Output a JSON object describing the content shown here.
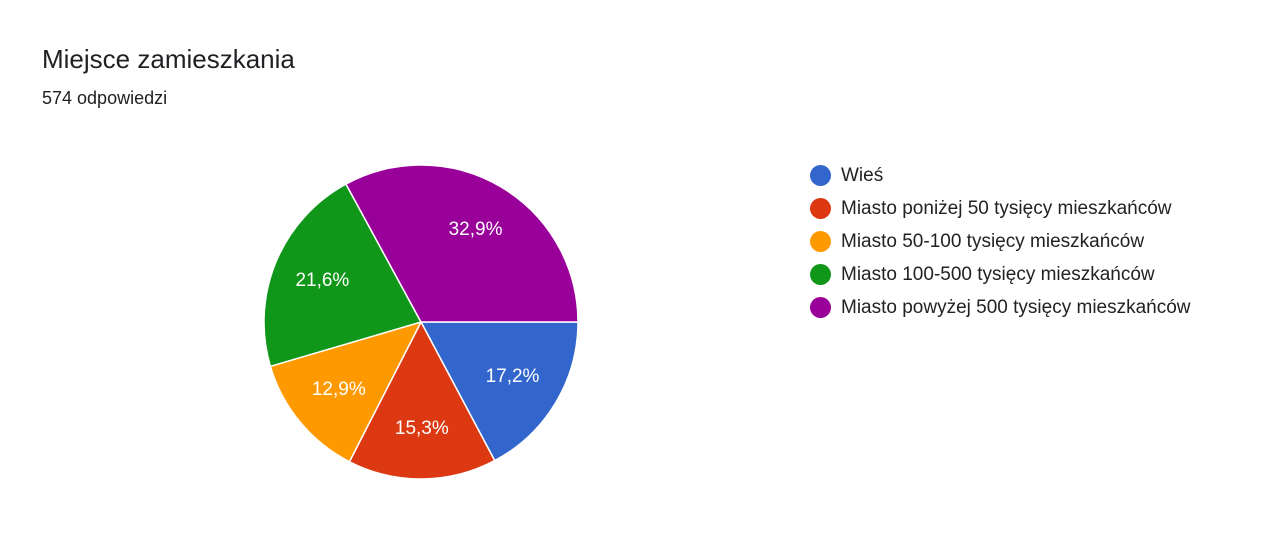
{
  "chart_data": {
    "type": "pie",
    "title": "Miejsce zamieszkania",
    "subtitle": "574 odpowiedzi",
    "categories": [
      "Wieś",
      "Miasto poniżej 50 tysięcy mieszkańców",
      "Miasto 50-100 tysięcy mieszkańców",
      "Miasto 100-500 tysięcy mieszkańców",
      "Miasto powyżej 500 tysięcy mieszkańców"
    ],
    "values": [
      17.2,
      15.3,
      12.9,
      21.6,
      32.9
    ],
    "value_labels": [
      "17,2%",
      "15,3%",
      "12,9%",
      "21,6%",
      "32,9%"
    ],
    "colors": [
      "#3366cc",
      "#dc3912",
      "#ff9900",
      "#109618",
      "#990099"
    ],
    "legend": "right"
  }
}
